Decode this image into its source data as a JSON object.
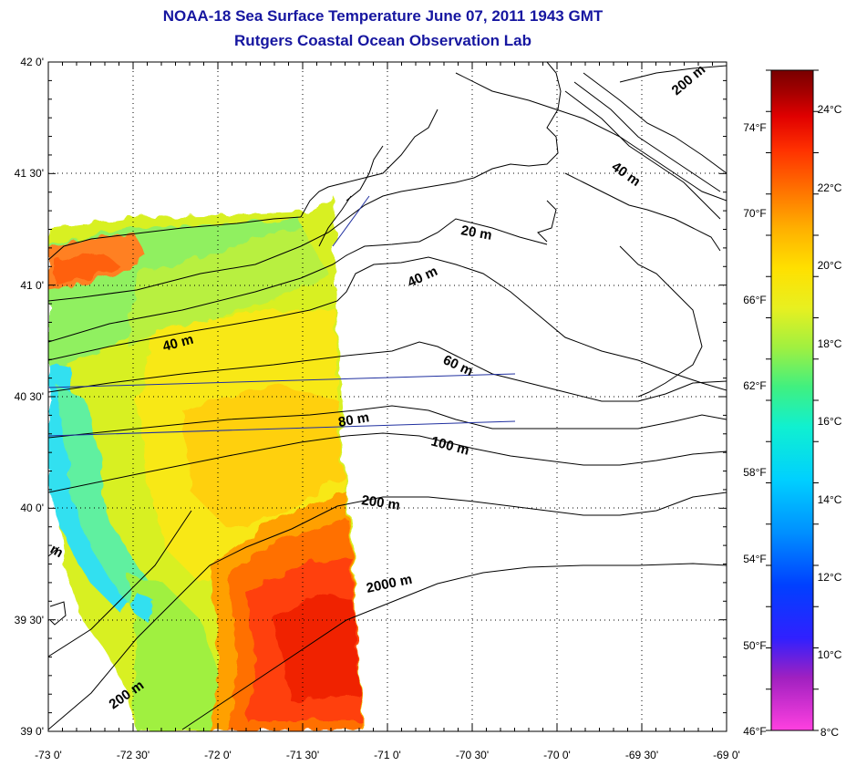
{
  "title": "NOAA-18 Sea Surface Temperature June 07, 2011 1943 GMT",
  "subtitle": "Rutgers Coastal Ocean Observation Lab",
  "map": {
    "lat_labels": [
      "42 0'",
      "41 30'",
      "41 0'",
      "40 30'",
      "40 0'",
      "39 30'",
      "39 0'"
    ],
    "lon_labels": [
      "-73 0'",
      "-72 30'",
      "-72 0'",
      "-71 30'",
      "-71 0'",
      "-70 30'",
      "-70 0'",
      "-69 30'",
      "-69 0'"
    ],
    "lat_range": [
      39.0,
      42.0
    ],
    "lon_range": [
      -73.0,
      -69.0
    ],
    "grid": true,
    "depth_contours": [
      "200 m",
      "40 m",
      "20 m",
      "40 m",
      "40 m",
      "60 m",
      "80 m",
      "100 m",
      "200 m",
      "2000 m",
      "200 m",
      "m"
    ]
  },
  "colorbar": {
    "celsius_labels": [
      "24°C",
      "22°C",
      "20°C",
      "18°C",
      "16°C",
      "14°C",
      "12°C",
      "10°C",
      "8°C"
    ],
    "fahrenheit_labels": [
      "74°F",
      "70°F",
      "66°F",
      "62°F",
      "58°F",
      "54°F",
      "50°F",
      "46°F"
    ],
    "colors": [
      "#ff40e0",
      "#a020c0",
      "#3020ff",
      "#0040ff",
      "#0090ff",
      "#00d0ff",
      "#10f0d0",
      "#40f080",
      "#a0f040",
      "#e8f020",
      "#ffe000",
      "#ffb000",
      "#ff7000",
      "#ff3000",
      "#e00000",
      "#a00000",
      "#780000"
    ]
  }
}
